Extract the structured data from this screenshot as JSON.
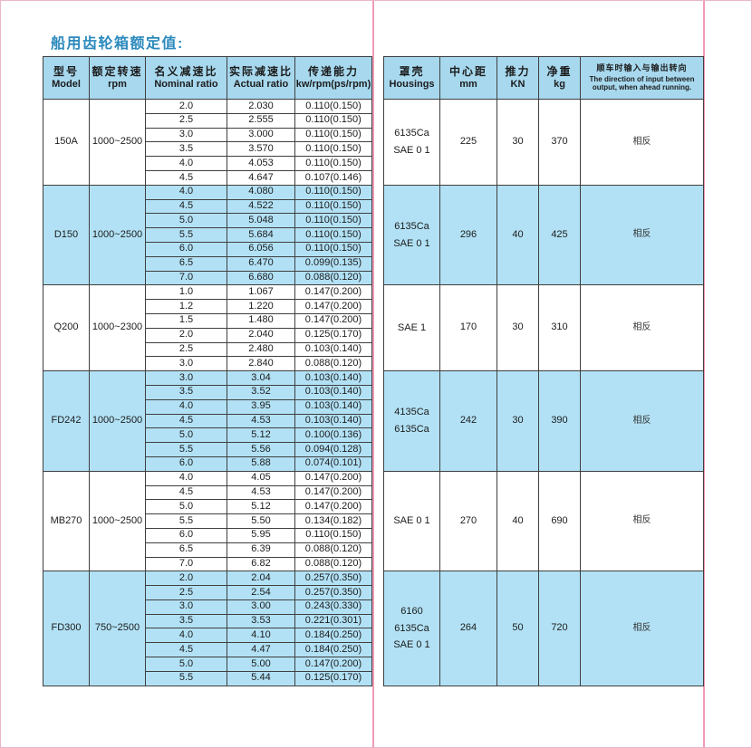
{
  "page": {
    "title": "船用齿轮箱额定值:"
  },
  "colors": {
    "title_blue": "#2c8abd",
    "header_bg": "#a7d8ee",
    "group_highlight_bg": "#b2e1f5",
    "table_border": "#3f3f3f",
    "divider_pink": "#f09cb6",
    "page_border_pink": "#e8b6c8"
  },
  "table": {
    "headers": {
      "model": {
        "zh": "型号",
        "en": "Model"
      },
      "rpm": {
        "zh": "额定转速",
        "en": "rpm"
      },
      "nominal": {
        "zh": "名义减速比",
        "en": "Nominal ratio"
      },
      "actual": {
        "zh": "实际减速比",
        "en": "Actual ratio"
      },
      "capacity": {
        "zh": "传递能力",
        "en": "kw/rpm(ps/rpm)"
      },
      "housings": {
        "zh": "罩壳",
        "en": "Housings"
      },
      "center": {
        "zh": "中心距",
        "en": "mm"
      },
      "thrust": {
        "zh": "推力",
        "en": "KN"
      },
      "weight": {
        "zh": "净重",
        "en": "kg"
      },
      "direction": {
        "zh": "顺车时输入与输出转向",
        "en": "The direction of input between output, when ahead running."
      }
    },
    "groups": [
      {
        "model": "150A",
        "rpm": "1000~2500",
        "highlight": false,
        "rows": [
          {
            "nominal": "2.0",
            "actual": "2.030",
            "capacity": "0.110(0.150)"
          },
          {
            "nominal": "2.5",
            "actual": "2.555",
            "capacity": "0.110(0.150)"
          },
          {
            "nominal": "3.0",
            "actual": "3.000",
            "capacity": "0.110(0.150)"
          },
          {
            "nominal": "3.5",
            "actual": "3.570",
            "capacity": "0.110(0.150)"
          },
          {
            "nominal": "4.0",
            "actual": "4.053",
            "capacity": "0.110(0.150)"
          },
          {
            "nominal": "4.5",
            "actual": "4.647",
            "capacity": "0.107(0.146)"
          }
        ],
        "housings": [
          "6135Ca",
          "SAE 0 1"
        ],
        "center_mm": "225",
        "thrust_kn": "30",
        "weight_kg": "370",
        "direction": "相反"
      },
      {
        "model": "D150",
        "rpm": "1000~2500",
        "highlight": true,
        "rows": [
          {
            "nominal": "4.0",
            "actual": "4.080",
            "capacity": "0.110(0.150)"
          },
          {
            "nominal": "4.5",
            "actual": "4.522",
            "capacity": "0.110(0.150)"
          },
          {
            "nominal": "5.0",
            "actual": "5.048",
            "capacity": "0.110(0.150)"
          },
          {
            "nominal": "5.5",
            "actual": "5.684",
            "capacity": "0.110(0.150)"
          },
          {
            "nominal": "6.0",
            "actual": "6.056",
            "capacity": "0.110(0.150)"
          },
          {
            "nominal": "6.5",
            "actual": "6.470",
            "capacity": "0.099(0.135)"
          },
          {
            "nominal": "7.0",
            "actual": "6.680",
            "capacity": "0.088(0.120)"
          }
        ],
        "housings": [
          "6135Ca",
          "SAE 0 1"
        ],
        "center_mm": "296",
        "thrust_kn": "40",
        "weight_kg": "425",
        "direction": "相反"
      },
      {
        "model": "Q200",
        "rpm": "1000~2300",
        "highlight": false,
        "rows": [
          {
            "nominal": "1.0",
            "actual": "1.067",
            "capacity": "0.147(0.200)"
          },
          {
            "nominal": "1.2",
            "actual": "1.220",
            "capacity": "0.147(0.200)"
          },
          {
            "nominal": "1.5",
            "actual": "1.480",
            "capacity": "0.147(0.200)"
          },
          {
            "nominal": "2.0",
            "actual": "2.040",
            "capacity": "0.125(0.170)"
          },
          {
            "nominal": "2.5",
            "actual": "2.480",
            "capacity": "0.103(0.140)"
          },
          {
            "nominal": "3.0",
            "actual": "2.840",
            "capacity": "0.088(0.120)"
          }
        ],
        "housings": [
          "SAE 1"
        ],
        "center_mm": "170",
        "thrust_kn": "30",
        "weight_kg": "310",
        "direction": "相反"
      },
      {
        "model": "FD242",
        "rpm": "1000~2500",
        "highlight": true,
        "rows": [
          {
            "nominal": "3.0",
            "actual": "3.04",
            "capacity": "0.103(0.140)"
          },
          {
            "nominal": "3.5",
            "actual": "3.52",
            "capacity": "0.103(0.140)"
          },
          {
            "nominal": "4.0",
            "actual": "3.95",
            "capacity": "0.103(0.140)"
          },
          {
            "nominal": "4.5",
            "actual": "4.53",
            "capacity": "0.103(0.140)"
          },
          {
            "nominal": "5.0",
            "actual": "5.12",
            "capacity": "0.100(0.136)"
          },
          {
            "nominal": "5.5",
            "actual": "5.56",
            "capacity": "0.094(0.128)"
          },
          {
            "nominal": "6.0",
            "actual": "5.88",
            "capacity": "0.074(0.101)"
          }
        ],
        "housings": [
          "4135Ca",
          "6135Ca"
        ],
        "center_mm": "242",
        "thrust_kn": "30",
        "weight_kg": "390",
        "direction": "相反"
      },
      {
        "model": "MB270",
        "rpm": "1000~2500",
        "highlight": false,
        "rows": [
          {
            "nominal": "4.0",
            "actual": "4.05",
            "capacity": "0.147(0.200)"
          },
          {
            "nominal": "4.5",
            "actual": "4.53",
            "capacity": "0.147(0.200)"
          },
          {
            "nominal": "5.0",
            "actual": "5.12",
            "capacity": "0.147(0.200)"
          },
          {
            "nominal": "5.5",
            "actual": "5.50",
            "capacity": "0.134(0.182)"
          },
          {
            "nominal": "6.0",
            "actual": "5.95",
            "capacity": "0.110(0.150)"
          },
          {
            "nominal": "6.5",
            "actual": "6.39",
            "capacity": "0.088(0.120)"
          },
          {
            "nominal": "7.0",
            "actual": "6.82",
            "capacity": "0.088(0.120)"
          }
        ],
        "housings": [
          "SAE 0 1"
        ],
        "center_mm": "270",
        "thrust_kn": "40",
        "weight_kg": "690",
        "direction": "相反"
      },
      {
        "model": "FD300",
        "rpm": "750~2500",
        "highlight": true,
        "rows": [
          {
            "nominal": "2.0",
            "actual": "2.04",
            "capacity": "0.257(0.350)"
          },
          {
            "nominal": "2.5",
            "actual": "2.54",
            "capacity": "0.257(0.350)"
          },
          {
            "nominal": "3.0",
            "actual": "3.00",
            "capacity": "0.243(0.330)"
          },
          {
            "nominal": "3.5",
            "actual": "3.53",
            "capacity": "0.221(0.301)"
          },
          {
            "nominal": "4.0",
            "actual": "4.10",
            "capacity": "0.184(0.250)"
          },
          {
            "nominal": "4.5",
            "actual": "4.47",
            "capacity": "0.184(0.250)"
          },
          {
            "nominal": "5.0",
            "actual": "5.00",
            "capacity": "0.147(0.200)"
          },
          {
            "nominal": "5.5",
            "actual": "5.44",
            "capacity": "0.125(0.170)"
          }
        ],
        "housings": [
          "6160",
          "6135Ca",
          "SAE 0 1"
        ],
        "center_mm": "264",
        "thrust_kn": "50",
        "weight_kg": "720",
        "direction": "相反"
      }
    ]
  }
}
